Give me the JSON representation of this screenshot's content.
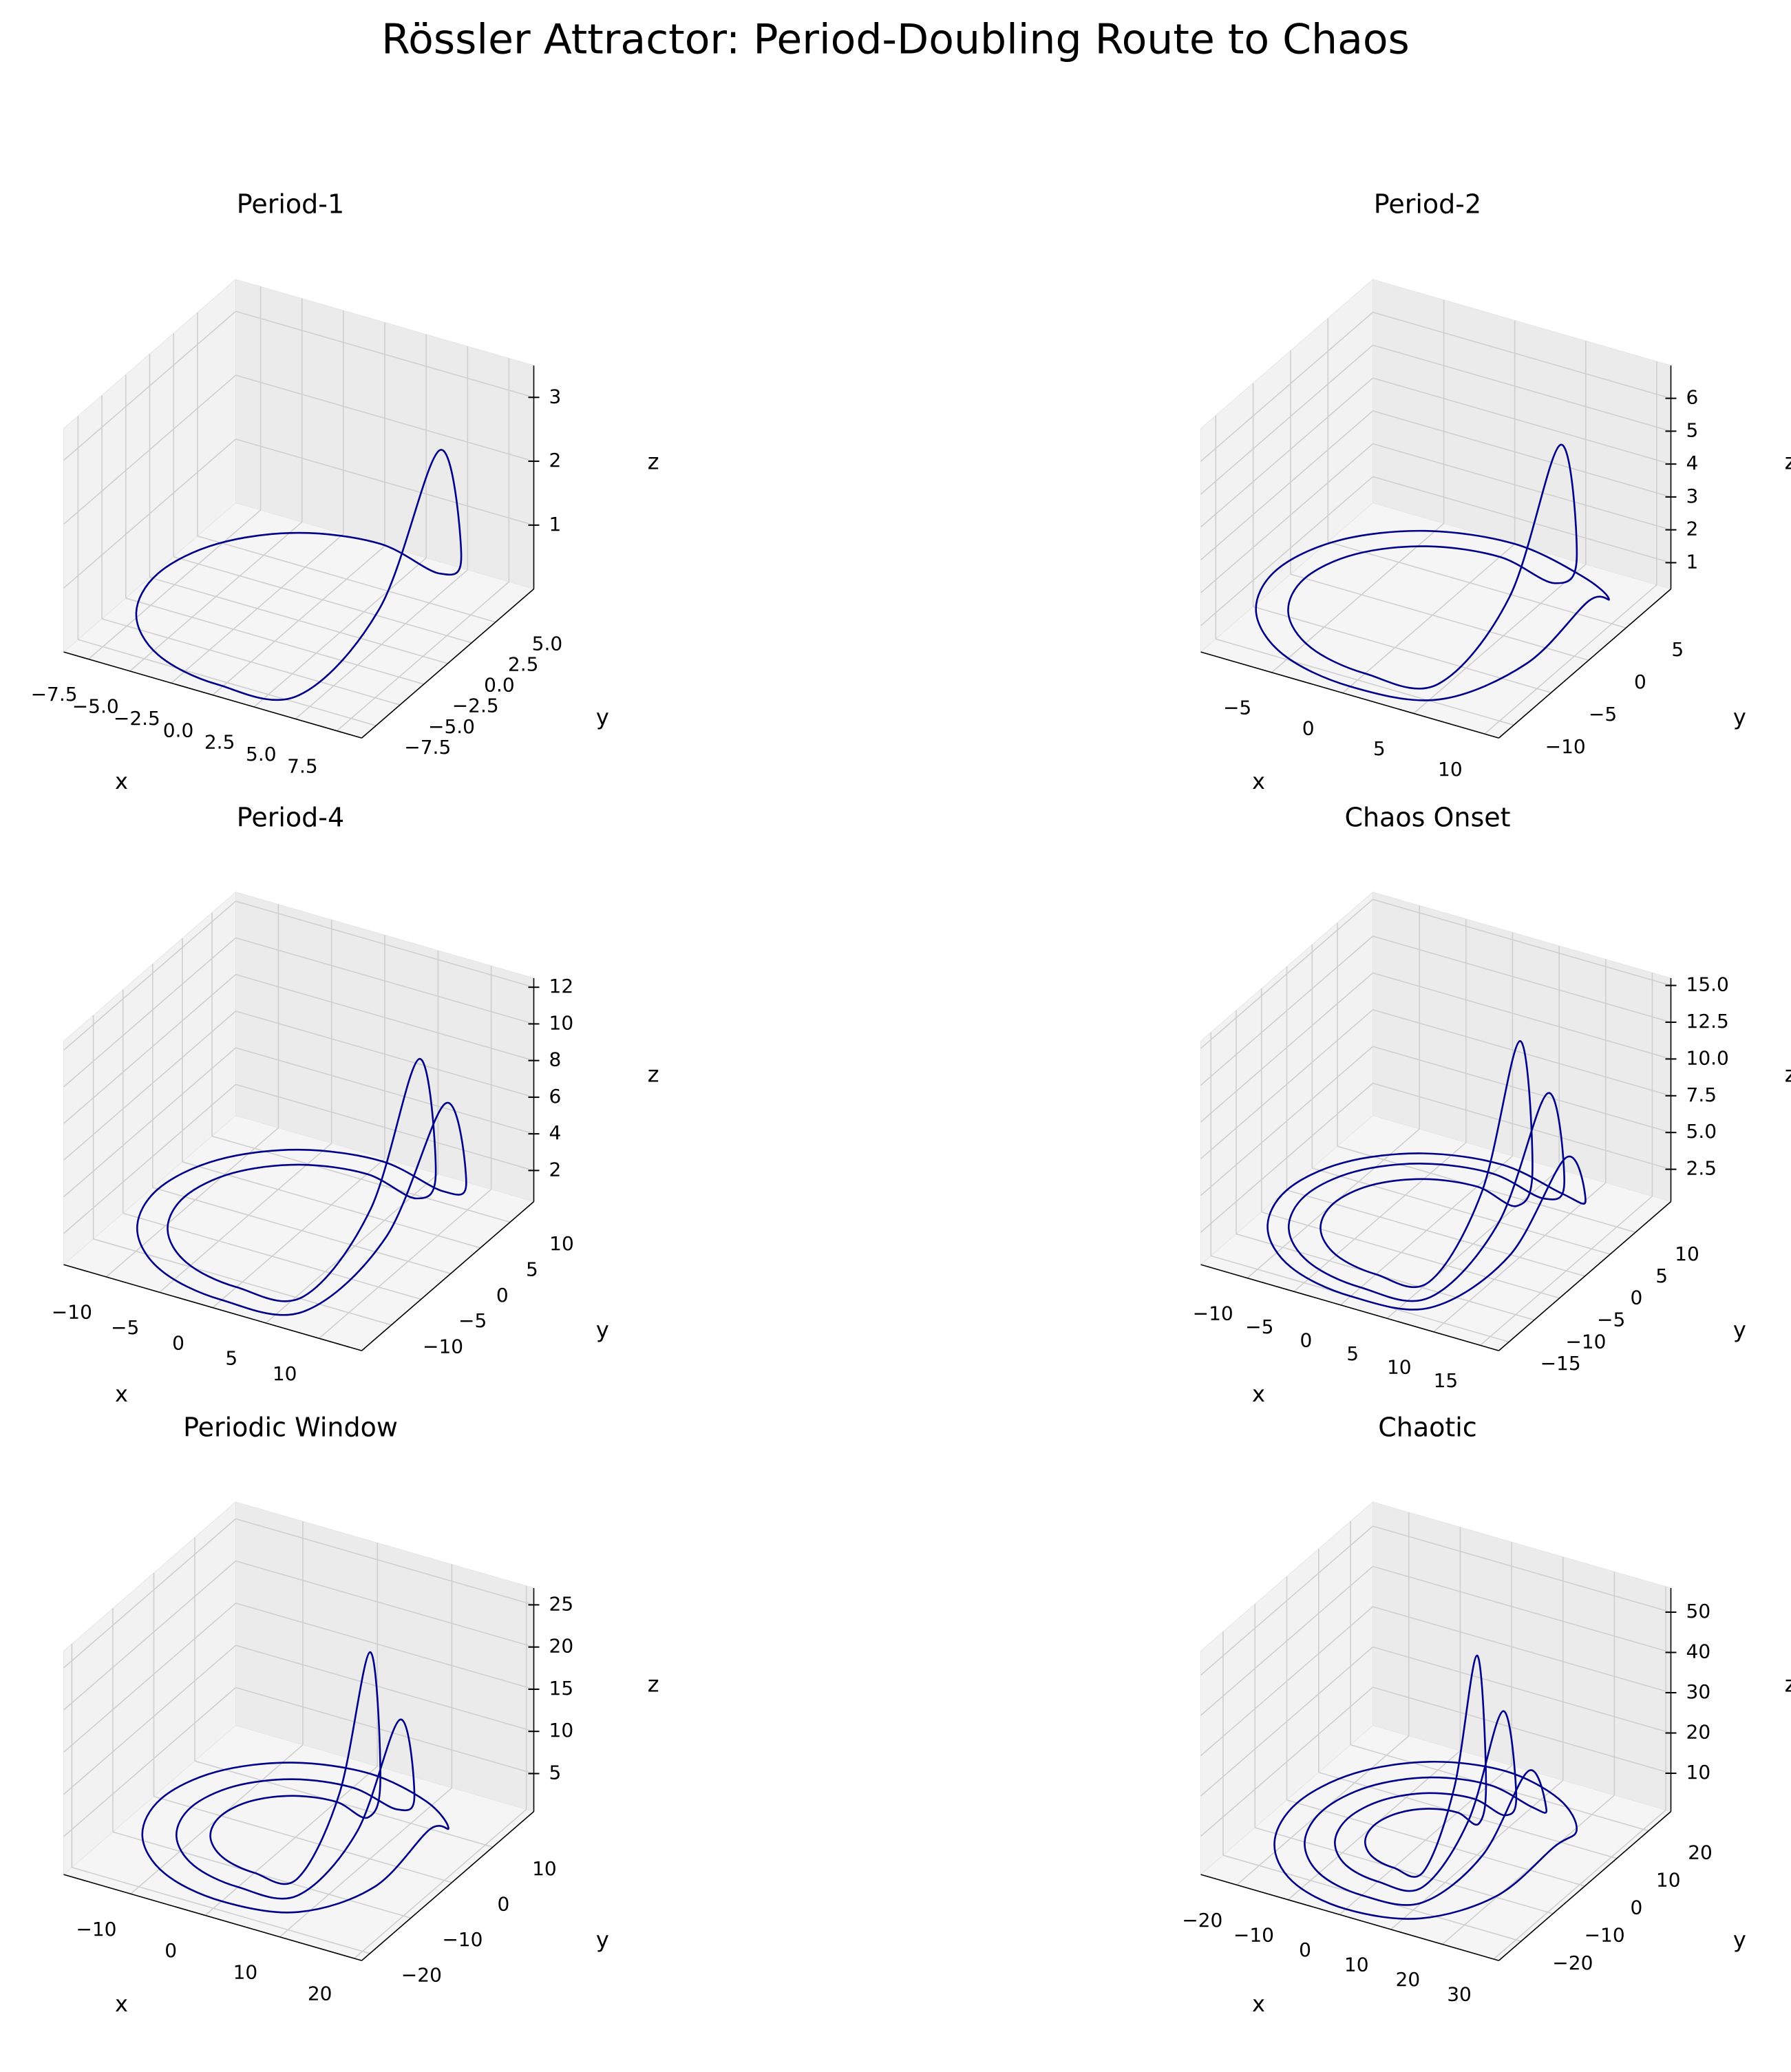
{
  "title": "Rössler Attractor: Period-Doubling Route to Chaos",
  "chart_data": [
    {
      "type": "line3d",
      "title": "Period-1",
      "xlabel": "x",
      "ylabel": "y",
      "zlabel": "z",
      "color": "#00008b",
      "xlim": [
        -9,
        9
      ],
      "ylim": [
        -9,
        9
      ],
      "zlim": [
        0,
        3.5
      ],
      "xticks": [
        {
          "value": -7.5,
          "label": "−7.5"
        },
        {
          "value": -5,
          "label": "−5.0"
        },
        {
          "value": -2.5,
          "label": "−2.5"
        },
        {
          "value": 0,
          "label": "0.0"
        },
        2.5,
        {
          "value": 5,
          "label": "5.0"
        },
        7.5
      ],
      "yticks": [
        {
          "value": -7.5,
          "label": "−7.5"
        },
        {
          "value": -5,
          "label": "−5.0"
        },
        {
          "value": -2.5,
          "label": "−2.5"
        },
        {
          "value": 0,
          "label": "0.0"
        },
        2.5,
        {
          "value": 5,
          "label": "5.0"
        }
      ],
      "zticks": [
        1,
        2,
        3
      ],
      "series": [
        {
          "x": [
            8.5,
            7.36,
            4.25,
            0,
            -4.25,
            -7.36,
            -8.5,
            -7.36,
            -4.25,
            0,
            4.25,
            7.36
          ],
          "y": [
            0,
            4.25,
            7.36,
            8.5,
            7.36,
            4.25,
            0,
            -4.25,
            -7.36,
            -8.5,
            -7.36,
            -4.25
          ],
          "z": [
            3.3,
            1.0,
            0.1,
            0.1,
            0.1,
            0.1,
            0.1,
            0.1,
            0.1,
            0.1,
            0.1,
            1.3
          ]
        }
      ]
    },
    {
      "type": "line3d",
      "title": "Period-2",
      "xlabel": "x",
      "ylabel": "y",
      "zlabel": "z",
      "color": "#00008b",
      "xlim": [
        -10,
        11
      ],
      "ylim": [
        -12,
        11
      ],
      "zlim": [
        0.2,
        7
      ],
      "xticks": [
        {
          "value": -5,
          "label": "−5"
        },
        0,
        5,
        10
      ],
      "yticks": [
        {
          "value": -10,
          "label": "−10"
        },
        {
          "value": -5,
          "label": "−5"
        },
        0,
        5
      ],
      "zticks": [
        1,
        2,
        3,
        4,
        5,
        6
      ],
      "series": [
        {
          "x": [
            9,
            7.79,
            4.5,
            0,
            -4.5,
            -7.79,
            -9,
            -7.79,
            -4.5,
            0,
            4.5,
            7.79
          ],
          "y": [
            0,
            4.5,
            7.79,
            9,
            7.79,
            4.5,
            0,
            -4.5,
            -7.79,
            -9,
            -7.79,
            -4.5
          ],
          "z": [
            6.5,
            2.0,
            0.2,
            0.2,
            0.2,
            0.2,
            0.2,
            0.2,
            0.2,
            0.2,
            0.2,
            2.6
          ]
        },
        {
          "x": [
            11,
            9.53,
            5.5,
            0,
            -5.5,
            -9.53,
            -11,
            -9.53,
            -5.5,
            0,
            5.5,
            9.53
          ],
          "y": [
            0,
            5.5,
            9.53,
            11,
            9.53,
            5.5,
            0,
            -5.5,
            -9.53,
            -11,
            -9.53,
            -5.5
          ],
          "z": [
            2.0,
            0.8,
            0.2,
            0.2,
            0.2,
            0.2,
            0.2,
            0.2,
            0.2,
            0.2,
            0.2,
            1.0
          ]
        }
      ]
    },
    {
      "type": "line3d",
      "title": "Period-4",
      "xlabel": "x",
      "ylabel": "y",
      "zlabel": "z",
      "color": "#00008b",
      "xlim": [
        -14,
        14
      ],
      "ylim": [
        -15,
        14
      ],
      "zlim": [
        0.3,
        12.5
      ],
      "xticks": [
        {
          "value": -10,
          "label": "−10"
        },
        {
          "value": -5,
          "label": "−5"
        },
        0,
        5,
        10
      ],
      "yticks": [
        {
          "value": -10,
          "label": "−10"
        },
        {
          "value": -5,
          "label": "−5"
        },
        0,
        5,
        10
      ],
      "zticks": [
        2,
        4,
        6,
        8,
        10,
        12
      ],
      "series": [
        {
          "x": [
            11,
            9.53,
            5.5,
            0,
            -5.5,
            -9.53,
            -11,
            -9.53,
            -5.5,
            0,
            5.5,
            9.53
          ],
          "y": [
            0,
            5.5,
            9.53,
            11,
            9.53,
            5.5,
            0,
            -5.5,
            -9.53,
            -11,
            -9.53,
            -5.5
          ],
          "z": [
            11.5,
            3.5,
            0.3,
            0.3,
            0.3,
            0.3,
            0.3,
            0.3,
            0.3,
            0.3,
            0.3,
            4.6
          ]
        },
        {
          "x": [
            13.5,
            11.69,
            6.75,
            0,
            -6.75,
            -11.69,
            -13.5,
            -11.69,
            -6.75,
            0,
            6.75,
            11.69
          ],
          "y": [
            0,
            6.75,
            11.69,
            13.5,
            11.69,
            6.75,
            0,
            -6.75,
            -11.69,
            -13.5,
            -11.69,
            -6.75
          ],
          "z": [
            9.5,
            2.9,
            0.3,
            0.3,
            0.3,
            0.3,
            0.3,
            0.3,
            0.3,
            0.3,
            0.3,
            3.8
          ]
        }
      ]
    },
    {
      "type": "line3d",
      "title": "Chaos Onset",
      "xlabel": "x",
      "ylabel": "y",
      "zlabel": "z",
      "color": "#00008b",
      "xlim": [
        -15,
        17
      ],
      "ylim": [
        -17,
        17
      ],
      "zlim": [
        0.3,
        15.5
      ],
      "xticks": [
        {
          "value": -10,
          "label": "−10"
        },
        {
          "value": -5,
          "label": "−5"
        },
        0,
        5,
        10,
        15
      ],
      "yticks": [
        {
          "value": -15,
          "label": "−15"
        },
        {
          "value": -10,
          "label": "−10"
        },
        {
          "value": -5,
          "label": "−5"
        },
        0,
        5,
        10
      ],
      "zticks": [
        2.5,
        {
          "value": 5,
          "label": "5.0"
        },
        7.5,
        {
          "value": 10,
          "label": "10.0"
        },
        12.5,
        {
          "value": 15,
          "label": "15.0"
        }
      ],
      "series": [
        {
          "x": [
            10,
            8.66,
            5,
            0,
            -5,
            -8.66,
            -10,
            -8.66,
            -5,
            0,
            5,
            8.66
          ],
          "y": [
            0,
            5,
            8.66,
            10,
            8.66,
            5,
            0,
            -5,
            -8.66,
            -10,
            -8.66,
            -5
          ],
          "z": [
            15,
            4.5,
            0.3,
            0.3,
            0.3,
            0.3,
            0.3,
            0.3,
            0.3,
            0.3,
            0.3,
            6
          ]
        },
        {
          "x": [
            13,
            11.26,
            6.5,
            0,
            -6.5,
            -11.26,
            -13,
            -11.26,
            -6.5,
            0,
            6.5,
            11.26
          ],
          "y": [
            0,
            6.5,
            11.26,
            13,
            11.26,
            6.5,
            0,
            -6.5,
            -11.26,
            -13,
            -11.26,
            -6.5
          ],
          "z": [
            12,
            3.6,
            0.3,
            0.3,
            0.3,
            0.3,
            0.3,
            0.3,
            0.3,
            0.3,
            0.3,
            4.8
          ]
        },
        {
          "x": [
            15,
            12.99,
            7.5,
            0,
            -7.5,
            -12.99,
            -15,
            -12.99,
            -7.5,
            0,
            7.5,
            12.99
          ],
          "y": [
            0,
            7.5,
            12.99,
            15,
            12.99,
            7.5,
            0,
            -7.5,
            -12.99,
            -15,
            -12.99,
            -7.5
          ],
          "z": [
            8,
            2.4,
            0.3,
            0.3,
            0.3,
            0.3,
            0.3,
            0.3,
            0.3,
            0.3,
            0.3,
            3.2
          ]
        }
      ]
    },
    {
      "type": "line3d",
      "title": "Periodic Window",
      "xlabel": "x",
      "ylabel": "y",
      "zlabel": "z",
      "color": "#00008b",
      "xlim": [
        -19,
        21
      ],
      "ylim": [
        -22,
        20
      ],
      "zlim": [
        0.5,
        27
      ],
      "xticks": [
        {
          "value": -10,
          "label": "−10"
        },
        0,
        10,
        20
      ],
      "yticks": [
        {
          "value": -20,
          "label": "−20"
        },
        {
          "value": -10,
          "label": "−10"
        },
        0,
        10
      ],
      "zticks": [
        5,
        10,
        15,
        20,
        25
      ],
      "series": [
        {
          "x": [
            10,
            8.66,
            5,
            0,
            -5,
            -8.66,
            -10,
            -8.66,
            -5,
            0,
            5,
            8.66
          ],
          "y": [
            0,
            5,
            8.66,
            10,
            8.66,
            5,
            0,
            -5,
            -8.66,
            -10,
            -8.66,
            -5
          ],
          "z": [
            25,
            7.5,
            0.5,
            0.5,
            0.5,
            0.5,
            0.5,
            0.5,
            0.5,
            0.5,
            0.5,
            10
          ]
        },
        {
          "x": [
            14,
            12.12,
            7,
            0,
            -7,
            -12.12,
            -14,
            -12.12,
            -7,
            0,
            7,
            12.12
          ],
          "y": [
            0,
            7,
            12.12,
            14,
            12.12,
            7,
            0,
            -7,
            -12.12,
            -14,
            -12.12,
            -7
          ],
          "z": [
            18,
            5.4,
            0.5,
            0.5,
            0.5,
            0.5,
            0.5,
            0.5,
            0.5,
            0.5,
            0.5,
            7.2
          ]
        },
        {
          "x": [
            18,
            15.59,
            9,
            0,
            -9,
            -15.59,
            -18,
            -15.59,
            -9,
            0,
            9,
            15.59
          ],
          "y": [
            0,
            9,
            15.59,
            18,
            15.59,
            9,
            0,
            -9,
            -15.59,
            -18,
            -15.59,
            -9
          ],
          "z": [
            6,
            1.8,
            0.5,
            0.5,
            0.5,
            0.5,
            0.5,
            0.5,
            0.5,
            0.5,
            0.5,
            2.4
          ]
        }
      ]
    },
    {
      "type": "line3d",
      "title": "Chaotic",
      "xlabel": "x",
      "ylabel": "y",
      "zlabel": "z",
      "color": "#00008b",
      "xlim": [
        -27,
        31
      ],
      "ylim": [
        -27,
        27
      ],
      "zlim": [
        0.5,
        56
      ],
      "xticks": [
        {
          "value": -20,
          "label": "−20"
        },
        {
          "value": -10,
          "label": "−10"
        },
        0,
        10,
        20,
        30
      ],
      "yticks": [
        {
          "value": -20,
          "label": "−20"
        },
        {
          "value": -10,
          "label": "−10"
        },
        0,
        10,
        20
      ],
      "zticks": [
        10,
        20,
        30,
        40,
        50
      ],
      "series": [
        {
          "x": [
            10,
            8.66,
            5,
            0,
            -5,
            -8.66,
            -10,
            -8.66,
            -5,
            0,
            5,
            8.66
          ],
          "y": [
            0,
            5,
            8.66,
            10,
            8.66,
            5,
            0,
            -5,
            -8.66,
            -10,
            -8.66,
            -5
          ],
          "z": [
            50,
            15,
            0.5,
            0.5,
            0.5,
            0.5,
            0.5,
            0.5,
            0.5,
            0.5,
            0.5,
            20
          ]
        },
        {
          "x": [
            15,
            12.99,
            7.5,
            0,
            -7.5,
            -12.99,
            -15,
            -12.99,
            -7.5,
            0,
            7.5,
            12.99
          ],
          "y": [
            0,
            7.5,
            12.99,
            15,
            12.99,
            7.5,
            0,
            -7.5,
            -12.99,
            -15,
            -12.99,
            -7.5
          ],
          "z": [
            38,
            11.4,
            0.5,
            0.5,
            0.5,
            0.5,
            0.5,
            0.5,
            0.5,
            0.5,
            0.5,
            15.2
          ]
        },
        {
          "x": [
            20,
            17.32,
            10,
            0,
            -10,
            -17.32,
            -20,
            -17.32,
            -10,
            0,
            10,
            17.32
          ],
          "y": [
            0,
            10,
            17.32,
            20,
            17.32,
            10,
            0,
            -10,
            -17.32,
            -20,
            -17.32,
            -10
          ],
          "z": [
            25,
            7.5,
            0.5,
            0.5,
            0.5,
            0.5,
            0.5,
            0.5,
            0.5,
            0.5,
            0.5,
            10
          ]
        },
        {
          "x": [
            25,
            21.65,
            12.5,
            0,
            -12.5,
            -21.65,
            -25,
            -21.65,
            -12.5,
            0,
            12.5,
            21.65
          ],
          "y": [
            0,
            12.5,
            21.65,
            25,
            21.65,
            12.5,
            0,
            -12.5,
            -21.65,
            -25,
            -21.65,
            -12.5
          ],
          "z": [
            8,
            2.4,
            0.5,
            0.5,
            0.5,
            0.5,
            0.5,
            0.5,
            0.5,
            0.5,
            0.5,
            3.2
          ]
        }
      ]
    }
  ]
}
